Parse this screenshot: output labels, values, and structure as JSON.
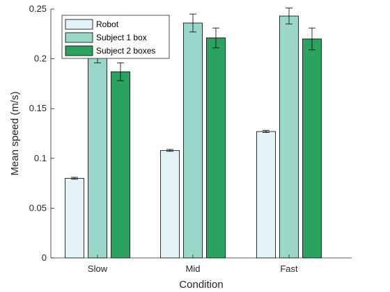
{
  "chart_data": {
    "type": "bar",
    "title": "",
    "xlabel": "Condition",
    "ylabel": "Mean speed (m/s)",
    "categories": [
      "Slow",
      "Mid",
      "Fast"
    ],
    "ylim": [
      0,
      0.25
    ],
    "yticks": [
      0,
      0.05,
      0.1,
      0.15,
      0.2,
      0.25
    ],
    "ytick_labels": [
      "0",
      "0.05",
      "0.1",
      "0.15",
      "0.2",
      "0.25"
    ],
    "grid": false,
    "legend_position": "top-left",
    "series": [
      {
        "name": "Robot",
        "color": "#e3f3f8",
        "values": [
          0.08,
          0.108,
          0.127
        ],
        "errors": [
          0.001,
          0.001,
          0.001
        ]
      },
      {
        "name": "Subject 1 box",
        "color": "#99d8c9",
        "values": [
          0.204,
          0.236,
          0.243
        ],
        "errors": [
          0.008,
          0.009,
          0.008
        ]
      },
      {
        "name": "Subject 2 boxes",
        "color": "#2ca25f",
        "values": [
          0.187,
          0.221,
          0.22
        ],
        "errors": [
          0.009,
          0.01,
          0.011
        ]
      }
    ]
  }
}
